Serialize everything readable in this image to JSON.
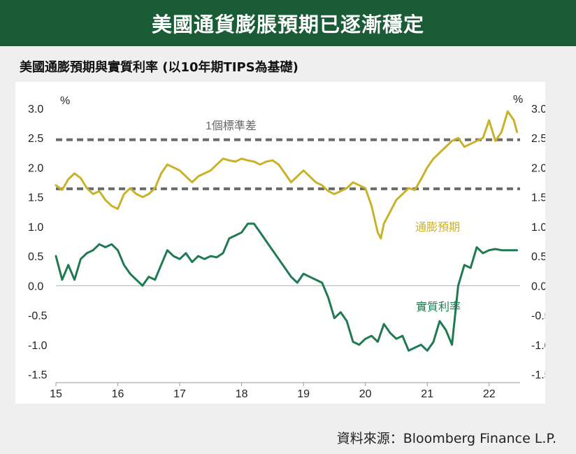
{
  "header": {
    "title": "美國通貨膨脹預期已逐漸穩定"
  },
  "subtitle": "美國通膨預期與實質利率 (以10年期TIPS為基礎)",
  "source": "資料來源：Bloomberg Finance L.P.",
  "colors": {
    "banner": "#1a5c36",
    "inflation": "#c9b22a",
    "real_rate": "#1f7a52",
    "std_line": "#6b6b6b"
  },
  "chart_data": {
    "type": "line",
    "title": "美國通膨預期與實質利率 (以10年期TIPS為基礎)",
    "xlabel": "",
    "y_unit_left": "%",
    "y_unit_right": "%",
    "ylim": [
      -1.5,
      3.0
    ],
    "yticks": [
      "3.0",
      "2.5",
      "2.0",
      "1.5",
      "1.0",
      "0.5",
      "0.0",
      "-0.5",
      "-1.0",
      "-1.5"
    ],
    "xlim": [
      2015.0,
      2022.5
    ],
    "xticks": [
      "15",
      "16",
      "17",
      "18",
      "19",
      "20",
      "21",
      "22"
    ],
    "grid": false,
    "std_label": "1個標準差",
    "std_lines": [
      2.47,
      1.64
    ],
    "series": [
      {
        "name": "通膨預期",
        "x": [
          2015.0,
          2015.1,
          2015.2,
          2015.3,
          2015.4,
          2015.5,
          2015.6,
          2015.7,
          2015.8,
          2015.9,
          2016.0,
          2016.1,
          2016.2,
          2016.3,
          2016.4,
          2016.5,
          2016.6,
          2016.7,
          2016.8,
          2016.9,
          2017.0,
          2017.1,
          2017.2,
          2017.3,
          2017.4,
          2017.5,
          2017.6,
          2017.7,
          2017.8,
          2017.9,
          2018.0,
          2018.1,
          2018.2,
          2018.3,
          2018.4,
          2018.5,
          2018.6,
          2018.7,
          2018.8,
          2018.9,
          2019.0,
          2019.1,
          2019.2,
          2019.3,
          2019.4,
          2019.5,
          2019.6,
          2019.7,
          2019.8,
          2019.9,
          2020.0,
          2020.1,
          2020.2,
          2020.25,
          2020.3,
          2020.4,
          2020.5,
          2020.6,
          2020.7,
          2020.8,
          2020.9,
          2021.0,
          2021.1,
          2021.2,
          2021.3,
          2021.4,
          2021.5,
          2021.6,
          2021.7,
          2021.8,
          2021.9,
          2022.0,
          2022.1,
          2022.2,
          2022.3,
          2022.4,
          2022.45
        ],
        "values": [
          1.7,
          1.62,
          1.8,
          1.9,
          1.82,
          1.65,
          1.55,
          1.6,
          1.45,
          1.35,
          1.3,
          1.55,
          1.65,
          1.55,
          1.5,
          1.55,
          1.65,
          1.9,
          2.05,
          2.0,
          1.95,
          1.85,
          1.75,
          1.85,
          1.9,
          1.95,
          2.05,
          2.15,
          2.12,
          2.1,
          2.15,
          2.12,
          2.1,
          2.05,
          2.1,
          2.12,
          2.05,
          1.9,
          1.75,
          1.85,
          1.95,
          1.85,
          1.75,
          1.7,
          1.6,
          1.55,
          1.6,
          1.65,
          1.75,
          1.7,
          1.65,
          1.35,
          0.9,
          0.8,
          1.05,
          1.25,
          1.45,
          1.55,
          1.65,
          1.62,
          1.8,
          2.0,
          2.15,
          2.25,
          2.35,
          2.45,
          2.5,
          2.35,
          2.4,
          2.45,
          2.5,
          2.8,
          2.45,
          2.6,
          2.95,
          2.8,
          2.6
        ]
      },
      {
        "name": "實質利率",
        "x": [
          2015.0,
          2015.1,
          2015.2,
          2015.3,
          2015.4,
          2015.5,
          2015.6,
          2015.7,
          2015.8,
          2015.9,
          2016.0,
          2016.1,
          2016.2,
          2016.3,
          2016.4,
          2016.5,
          2016.6,
          2016.7,
          2016.8,
          2016.9,
          2017.0,
          2017.1,
          2017.2,
          2017.3,
          2017.4,
          2017.5,
          2017.6,
          2017.7,
          2017.8,
          2017.9,
          2018.0,
          2018.1,
          2018.2,
          2018.3,
          2018.4,
          2018.5,
          2018.6,
          2018.7,
          2018.8,
          2018.9,
          2019.0,
          2019.1,
          2019.2,
          2019.3,
          2019.4,
          2019.5,
          2019.6,
          2019.7,
          2019.8,
          2019.9,
          2020.0,
          2020.1,
          2020.2,
          2020.25,
          2020.3,
          2020.4,
          2020.5,
          2020.6,
          2020.7,
          2020.8,
          2020.9,
          2021.0,
          2021.1,
          2021.2,
          2021.3,
          2021.4,
          2021.5,
          2021.6,
          2021.7,
          2021.8,
          2021.9,
          2022.0,
          2022.1,
          2022.2,
          2022.3,
          2022.35,
          2022.4,
          2022.45
        ],
        "values": [
          0.5,
          0.1,
          0.35,
          0.1,
          0.45,
          0.55,
          0.6,
          0.7,
          0.65,
          0.7,
          0.6,
          0.35,
          0.2,
          0.1,
          0.0,
          0.15,
          0.1,
          0.35,
          0.6,
          0.5,
          0.45,
          0.55,
          0.4,
          0.5,
          0.45,
          0.5,
          0.48,
          0.55,
          0.8,
          0.85,
          0.9,
          1.05,
          1.05,
          0.9,
          0.75,
          0.6,
          0.45,
          0.3,
          0.15,
          0.05,
          0.2,
          0.15,
          0.1,
          0.05,
          -0.2,
          -0.55,
          -0.45,
          -0.6,
          -0.95,
          -1.0,
          -0.9,
          -0.85,
          -0.95,
          -0.8,
          -0.65,
          -0.8,
          -0.9,
          -0.85,
          -1.1,
          -1.05,
          -1.0,
          -1.1,
          -0.95,
          -0.6,
          -0.75,
          -1.0,
          0.0,
          0.35,
          0.3,
          0.65,
          0.55,
          0.6,
          0.62,
          0.6,
          0.6,
          0.6,
          0.6,
          0.6
        ]
      }
    ],
    "series_labels": [
      "通膨預期",
      "實質利率"
    ]
  }
}
